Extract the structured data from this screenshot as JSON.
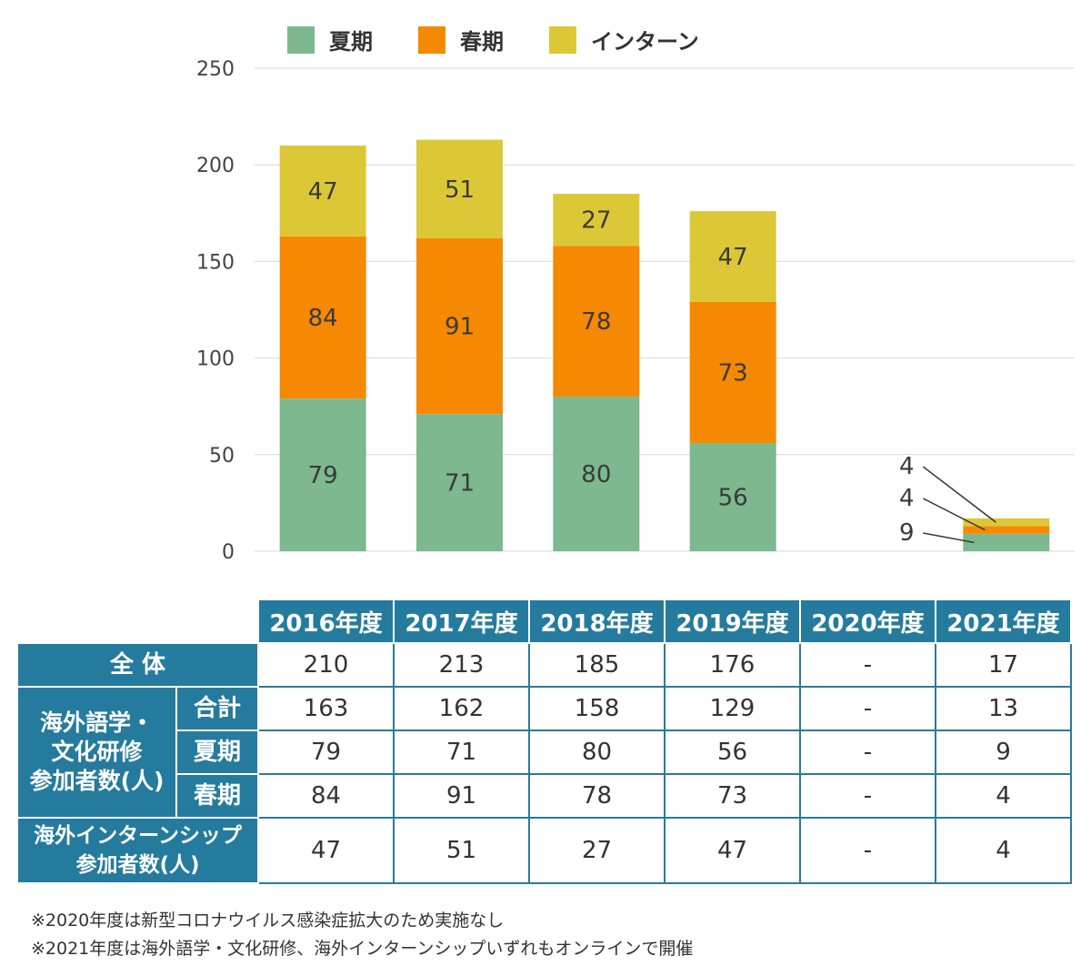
{
  "chart_data": {
    "type": "bar",
    "stacked": true,
    "categories": [
      "2016年度",
      "2017年度",
      "2018年度",
      "2019年度",
      "2020年度",
      "2021年度"
    ],
    "series": [
      {
        "name": "夏期",
        "color": "#7db88f",
        "values": [
          79,
          71,
          80,
          56,
          null,
          9
        ]
      },
      {
        "name": "春期",
        "color": "#f58a02",
        "values": [
          84,
          91,
          78,
          73,
          null,
          4
        ]
      },
      {
        "name": "インターン",
        "color": "#dcc836",
        "values": [
          47,
          51,
          27,
          47,
          null,
          4
        ]
      }
    ],
    "ylim": [
      0,
      250
    ],
    "yticks": [
      0,
      50,
      100,
      150,
      200,
      250
    ],
    "grid": true,
    "legend_position": "top"
  },
  "table": {
    "year_headers": [
      "2016年度",
      "2017年度",
      "2018年度",
      "2019年度",
      "2020年度",
      "2021年度"
    ],
    "total_label": "全 体",
    "total_values": [
      "210",
      "213",
      "185",
      "176",
      "-",
      "17"
    ],
    "study_group_label": "海外語学・\n文化研修\n参加者数(人)",
    "study_rows": [
      {
        "label": "合計",
        "values": [
          "163",
          "162",
          "158",
          "129",
          "-",
          "13"
        ]
      },
      {
        "label": "夏期",
        "values": [
          "79",
          "71",
          "80",
          "56",
          "-",
          "9"
        ]
      },
      {
        "label": "春期",
        "values": [
          "84",
          "91",
          "78",
          "73",
          "-",
          "4"
        ]
      }
    ],
    "intern_label": "海外インターンシップ\n参加者数(人)",
    "intern_values": [
      "47",
      "51",
      "27",
      "47",
      "-",
      "4"
    ]
  },
  "notes": [
    "※2020年度は新型コロナウイルス感染症拡大のため実施なし",
    "※2021年度は海外語学・文化研修、海外インターンシップいずれもオンラインで開催"
  ]
}
